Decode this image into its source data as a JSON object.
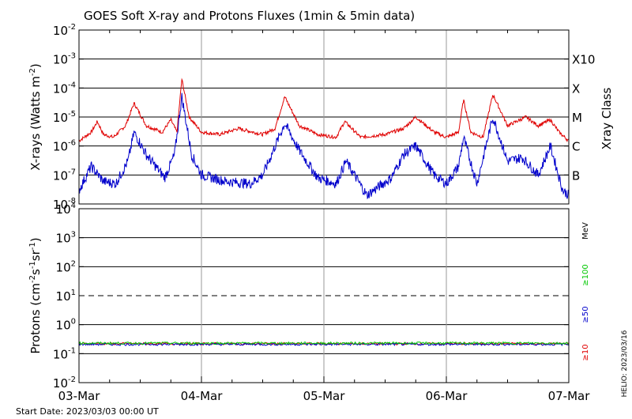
{
  "title": "GOES Soft X-ray and Protons Fluxes   (1min & 5min data)",
  "start_date": "Start Date: 2023/03/03 00:00 UT",
  "credit": "HELIO: 2023/03/16",
  "colors": {
    "xray_long": "#e00000",
    "xray_short": "#0000cc",
    "p10": "#e00000",
    "p50": "#0000cc",
    "p100": "#00c800"
  },
  "chart_data": [
    {
      "type": "line",
      "panel": "xray",
      "ylabel_main": "X-rays (Watts m",
      "ylabel_exp": "-2",
      "ylabel_close": ")",
      "y_scale": "log",
      "ylim": [
        1e-08,
        0.01
      ],
      "y_ticks": [
        {
          "base": "10",
          "exp": "-2"
        },
        {
          "base": "10",
          "exp": "-3"
        },
        {
          "base": "10",
          "exp": "-4"
        },
        {
          "base": "10",
          "exp": "-5"
        },
        {
          "base": "10",
          "exp": "-6"
        },
        {
          "base": "10",
          "exp": "-7"
        },
        {
          "base": "10",
          "exp": "-8"
        }
      ],
      "right_axis_label": "Xray Class",
      "class_labels": [
        "X10",
        "X",
        "M",
        "C",
        "B"
      ],
      "x_ticks": [
        "03-Mar",
        "04-Mar",
        "05-Mar",
        "06-Mar",
        "07-Mar"
      ],
      "x_range_days": [
        0,
        4
      ],
      "grid": true,
      "series": [
        {
          "color": "red",
          "points": [
            [
              0.0,
              1.5e-06
            ],
            [
              0.1,
              3e-06
            ],
            [
              0.15,
              7e-06
            ],
            [
              0.2,
              2.5e-06
            ],
            [
              0.28,
              2e-06
            ],
            [
              0.38,
              5e-06
            ],
            [
              0.45,
              3e-05
            ],
            [
              0.55,
              5e-06
            ],
            [
              0.68,
              3e-06
            ],
            [
              0.75,
              8e-06
            ],
            [
              0.8,
              3e-06
            ],
            [
              0.84,
              0.0002
            ],
            [
              0.9,
              1e-05
            ],
            [
              1.0,
              3e-06
            ],
            [
              1.15,
              2.5e-06
            ],
            [
              1.3,
              4e-06
            ],
            [
              1.5,
              2.5e-06
            ],
            [
              1.6,
              4e-06
            ],
            [
              1.68,
              5e-05
            ],
            [
              1.8,
              5e-06
            ],
            [
              1.95,
              2.5e-06
            ],
            [
              2.1,
              2e-06
            ],
            [
              2.17,
              7e-06
            ],
            [
              2.3,
              2e-06
            ],
            [
              2.5,
              2.5e-06
            ],
            [
              2.65,
              4e-06
            ],
            [
              2.75,
              1e-05
            ],
            [
              2.9,
              3e-06
            ],
            [
              3.0,
              2e-06
            ],
            [
              3.1,
              3e-06
            ],
            [
              3.14,
              4e-05
            ],
            [
              3.2,
              3e-06
            ],
            [
              3.3,
              2e-06
            ],
            [
              3.38,
              6e-05
            ],
            [
              3.5,
              5e-06
            ],
            [
              3.65,
              1e-05
            ],
            [
              3.75,
              5e-06
            ],
            [
              3.85,
              8e-06
            ],
            [
              3.92,
              3e-06
            ],
            [
              4.0,
              1.5e-06
            ]
          ]
        },
        {
          "color": "blue",
          "points": [
            [
              0.0,
              3e-08
            ],
            [
              0.1,
              2e-07
            ],
            [
              0.2,
              6e-08
            ],
            [
              0.3,
              5e-08
            ],
            [
              0.4,
              3e-07
            ],
            [
              0.45,
              3e-06
            ],
            [
              0.55,
              5e-07
            ],
            [
              0.7,
              8e-08
            ],
            [
              0.78,
              5e-07
            ],
            [
              0.84,
              5e-05
            ],
            [
              0.92,
              5e-07
            ],
            [
              1.0,
              1e-07
            ],
            [
              1.2,
              6e-08
            ],
            [
              1.4,
              5e-08
            ],
            [
              1.5,
              1e-07
            ],
            [
              1.55,
              3e-07
            ],
            [
              1.68,
              6e-06
            ],
            [
              1.8,
              7e-07
            ],
            [
              1.95,
              8e-08
            ],
            [
              2.1,
              5e-08
            ],
            [
              2.18,
              3e-07
            ],
            [
              2.35,
              2e-08
            ],
            [
              2.55,
              8e-08
            ],
            [
              2.65,
              5e-07
            ],
            [
              2.75,
              1e-06
            ],
            [
              2.9,
              1e-07
            ],
            [
              3.0,
              5e-08
            ],
            [
              3.1,
              2e-07
            ],
            [
              3.14,
              2e-06
            ],
            [
              3.25,
              5e-08
            ],
            [
              3.38,
              1e-05
            ],
            [
              3.5,
              3e-07
            ],
            [
              3.62,
              4e-07
            ],
            [
              3.75,
              1e-07
            ],
            [
              3.85,
              1e-06
            ],
            [
              3.95,
              3e-08
            ],
            [
              4.0,
              2e-08
            ]
          ]
        }
      ]
    },
    {
      "type": "line",
      "panel": "protons",
      "ylabel_main": "Protons (cm",
      "ylabel_exp1": "-2",
      "ylabel_mid": "s",
      "ylabel_exp2": "-1",
      "ylabel_mid2": "sr",
      "ylabel_exp3": "-1",
      "ylabel_close": ")",
      "y_scale": "log",
      "ylim": [
        0.01,
        10000.0
      ],
      "y_ticks": [
        {
          "base": "10",
          "exp": "4"
        },
        {
          "base": "10",
          "exp": "3"
        },
        {
          "base": "10",
          "exp": "2"
        },
        {
          "base": "10",
          "exp": "1"
        },
        {
          "base": "10",
          "exp": "0"
        },
        {
          "base": "10",
          "exp": "-1"
        },
        {
          "base": "10",
          "exp": "-2"
        }
      ],
      "threshold_dashed": 10,
      "units": "MeV",
      "legend": [
        "≥100",
        "≥50",
        "≥10"
      ],
      "series": [
        {
          "name": "≥10",
          "color": "red",
          "level": 0.22
        },
        {
          "name": "≥50",
          "color": "blue",
          "level": 0.21
        },
        {
          "name": "≥100",
          "color": "green",
          "level": 0.23
        }
      ]
    }
  ]
}
